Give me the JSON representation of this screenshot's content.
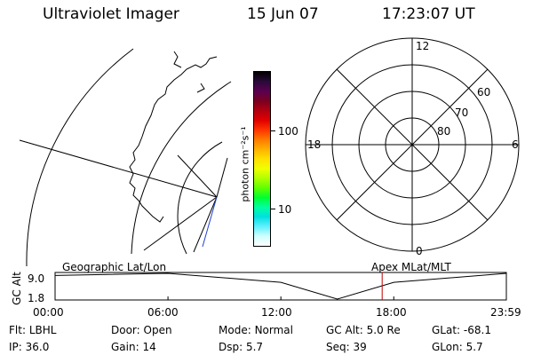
{
  "header": {
    "instrument": "Ultraviolet Imager",
    "date": "15 Jun 07",
    "time": "17:23:07 UT"
  },
  "colorbar": {
    "unit_label": "photon cm⁻²s⁻¹",
    "tick_labels": [
      "100",
      "10"
    ],
    "colors_top_to_bottom": [
      "#000000",
      "#2a0a3a",
      "#5a0050",
      "#7a0020",
      "#b00010",
      "#e00000",
      "#ff3300",
      "#ff7a00",
      "#ffb000",
      "#ffe000",
      "#f0ff00",
      "#b0ff00",
      "#60ff00",
      "#00ff30",
      "#00ffa0",
      "#00e0e0",
      "#60f0ff",
      "#d0ffff",
      "#ffffff"
    ]
  },
  "polar_plot": {
    "mlt_labels": {
      "top": "12",
      "left": "18",
      "right": "6",
      "bottom": "0"
    },
    "mlat_labels": [
      "60",
      "70",
      "80"
    ]
  },
  "timeline": {
    "left_label": "Geographic Lat/Lon",
    "right_label": "Apex MLat/MLT",
    "axis_title": "GC Alt",
    "y_ticks": [
      "9.0",
      "1.8"
    ],
    "x_ticks": [
      "00:00",
      "06:00",
      "12:00",
      "18:00",
      "23:59"
    ],
    "chart_data": {
      "type": "line",
      "x": [
        "00:00",
        "06:00",
        "12:00",
        "15:00",
        "18:00",
        "23:59"
      ],
      "series": [
        {
          "values": [
            8.4,
            9.0,
            6.5,
            1.8,
            6.5,
            9.0
          ]
        }
      ],
      "ylim": [
        1.8,
        9.0
      ],
      "marker_time": "17:23",
      "marker_color": "#c00000"
    }
  },
  "footer": {
    "rows": [
      [
        {
          "key": "Flt:",
          "val": "LBHL"
        },
        {
          "key": "Door:",
          "val": "Open"
        },
        {
          "key": "Mode:",
          "val": "Normal"
        },
        {
          "key": "GC Alt:",
          "val": "5.0 Re"
        },
        {
          "key": "GLat:",
          "val": "-68.1"
        }
      ],
      [
        {
          "key": "IP:",
          "val": "36.0"
        },
        {
          "key": "Gain:",
          "val": "14"
        },
        {
          "key": "Dsp:",
          "val": "5.7"
        },
        {
          "key": "Seq:",
          "val": "39"
        },
        {
          "key": "GLon:",
          "val": "5.7"
        }
      ]
    ]
  }
}
